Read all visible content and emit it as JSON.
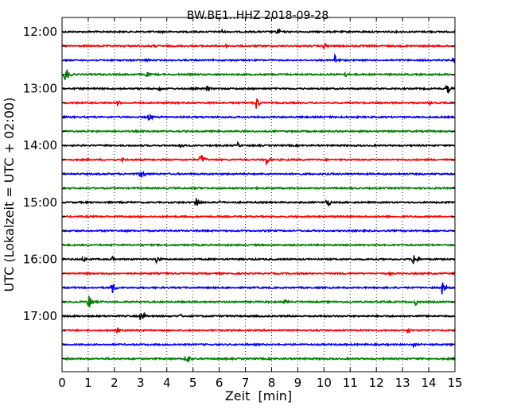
{
  "chart_data": {
    "type": "line",
    "title": "BW.BE1..HHZ 2018-09-28",
    "xlabel": "Zeit  [min]",
    "ylabel": "UTC (Lokalzeit = UTC + 02:00)",
    "xlim": [
      0,
      15
    ],
    "x_ticks": [
      "0",
      "1",
      "2",
      "3",
      "4",
      "5",
      "6",
      "7",
      "8",
      "9",
      "10",
      "11",
      "12",
      "13",
      "14",
      "15"
    ],
    "y_ticks": [
      "12:00",
      "13:00",
      "14:00",
      "15:00",
      "16:00",
      "17:00"
    ],
    "grid": "vertical dotted, every 1 min",
    "traces_per_hour": 4,
    "trace_colors": [
      "#000000",
      "#ff0000",
      "#0000ff",
      "#008000"
    ],
    "traces": [
      {
        "start": "12:00",
        "events": [
          [
            8.2,
            6
          ],
          [
            6.1,
            3
          ],
          [
            3.8,
            2
          ]
        ]
      },
      {
        "start": "12:15",
        "events": [
          [
            10.0,
            5
          ],
          [
            3.5,
            3
          ],
          [
            6.2,
            3
          ]
        ]
      },
      {
        "start": "12:30",
        "events": [
          [
            10.4,
            9
          ],
          [
            14.9,
            4
          ],
          [
            3.2,
            3
          ]
        ]
      },
      {
        "start": "12:45",
        "events": [
          [
            0.1,
            15
          ],
          [
            3.2,
            5
          ],
          [
            10.8,
            4
          ]
        ]
      },
      {
        "start": "13:00",
        "events": [
          [
            14.7,
            7
          ],
          [
            5.5,
            5
          ],
          [
            3.7,
            4
          ]
        ]
      },
      {
        "start": "13:15",
        "events": [
          [
            7.4,
            10
          ],
          [
            2.1,
            4
          ],
          [
            14.0,
            3
          ]
        ]
      },
      {
        "start": "13:30",
        "events": [
          [
            3.3,
            7
          ],
          [
            10.3,
            3
          ]
        ]
      },
      {
        "start": "13:45",
        "events": []
      },
      {
        "start": "14:00",
        "events": [
          [
            4.5,
            5
          ],
          [
            6.7,
            4
          ]
        ]
      },
      {
        "start": "14:15",
        "events": [
          [
            5.3,
            10
          ],
          [
            7.8,
            7
          ],
          [
            2.3,
            3
          ]
        ]
      },
      {
        "start": "14:30",
        "events": [
          [
            3.0,
            8
          ]
        ]
      },
      {
        "start": "14:45",
        "events": []
      },
      {
        "start": "15:00",
        "events": [
          [
            5.1,
            9
          ],
          [
            10.1,
            8
          ],
          [
            6.0,
            3
          ]
        ]
      },
      {
        "start": "15:15",
        "events": []
      },
      {
        "start": "15:30",
        "events": []
      },
      {
        "start": "15:45",
        "events": []
      },
      {
        "start": "16:00",
        "events": [
          [
            0.8,
            5
          ],
          [
            3.6,
            6
          ],
          [
            13.4,
            12
          ],
          [
            1.9,
            4
          ]
        ]
      },
      {
        "start": "16:15",
        "events": [
          [
            12.5,
            2
          ]
        ]
      },
      {
        "start": "16:30",
        "events": [
          [
            1.9,
            9
          ],
          [
            14.5,
            9
          ]
        ]
      },
      {
        "start": "16:45",
        "events": [
          [
            1.0,
            12
          ],
          [
            8.5,
            4
          ],
          [
            13.5,
            5
          ]
        ]
      },
      {
        "start": "17:00",
        "events": [
          [
            3.0,
            9
          ],
          [
            4.5,
            3
          ]
        ]
      },
      {
        "start": "17:15",
        "events": [
          [
            2.1,
            4
          ],
          [
            13.2,
            4
          ],
          [
            4.0,
            2
          ]
        ]
      },
      {
        "start": "17:30",
        "events": [
          [
            13.4,
            3
          ]
        ]
      },
      {
        "start": "17:45",
        "events": [
          [
            4.7,
            11
          ]
        ]
      }
    ]
  }
}
